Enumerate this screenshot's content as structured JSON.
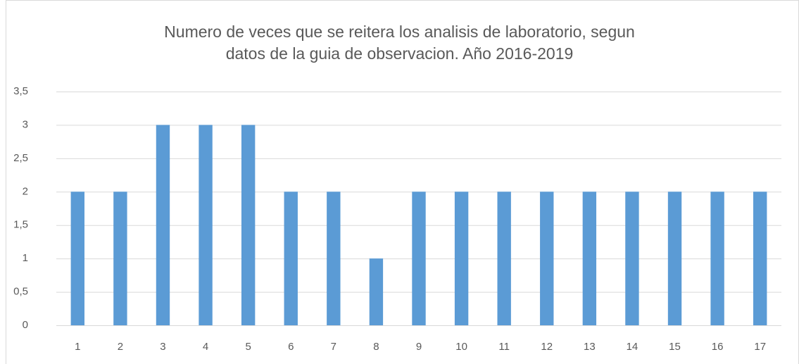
{
  "chart_data": {
    "type": "bar",
    "title": "Numero de veces que se reitera los analisis de laboratorio, segun datos de la guia de observacion. Año 2016-2019",
    "categories": [
      "1",
      "2",
      "3",
      "4",
      "5",
      "6",
      "7",
      "8",
      "9",
      "10",
      "11",
      "12",
      "13",
      "14",
      "15",
      "16",
      "17"
    ],
    "values": [
      2,
      2,
      3,
      3,
      3,
      2,
      2,
      1,
      2,
      2,
      2,
      2,
      2,
      2,
      2,
      2,
      2
    ],
    "color": "#5b9bd5",
    "ylim": [
      0,
      3.5
    ],
    "yticks": [
      0,
      {
        "value": 0.5,
        "label": "0,5"
      },
      1,
      {
        "value": 1.5,
        "label": "1,5"
      },
      2,
      {
        "value": 2.5,
        "label": "2,5"
      },
      3,
      {
        "value": 3.5,
        "label": "3,5"
      }
    ],
    "grid": true
  }
}
